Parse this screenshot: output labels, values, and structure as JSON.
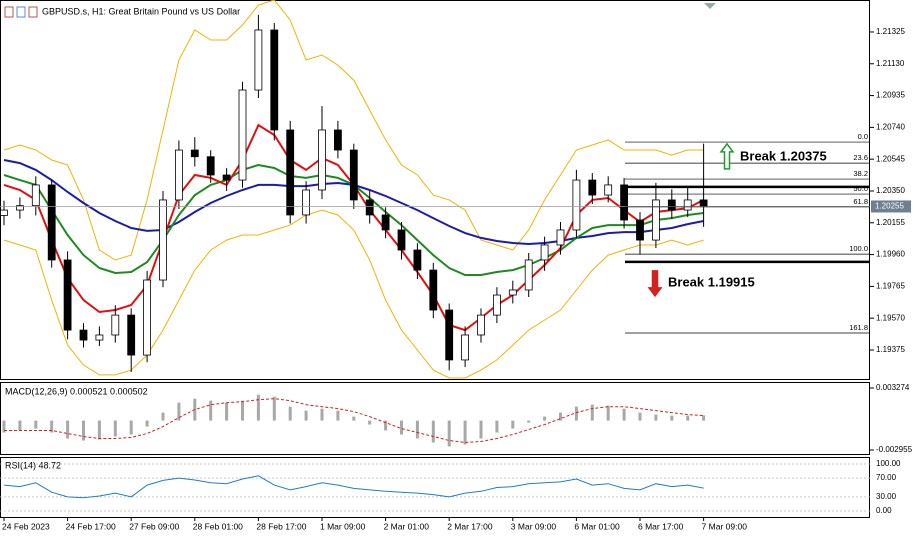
{
  "chart_data": [
    {
      "type": "candlestick",
      "title": "GBPUSD.s, H1:  Great Britain Pound vs US Dollar",
      "categories": [
        "24 Feb 2023",
        null,
        null,
        null,
        "24 Feb 17:00",
        null,
        null,
        null,
        "27 Feb 09:00",
        null,
        null,
        null,
        "28 Feb 01:00",
        null,
        null,
        null,
        "28 Feb 17:00",
        null,
        null,
        null,
        "1 Mar 09:00",
        null,
        null,
        null,
        "2 Mar 01:00",
        null,
        null,
        null,
        "2 Mar 17:00",
        null,
        null,
        null,
        "3 Mar 09:00",
        null,
        null,
        null,
        "6 Mar 01:00",
        null,
        null,
        null,
        "6 Mar 17:00",
        null,
        null,
        null,
        "7 Mar 09:00"
      ],
      "open": [
        1.202,
        1.20233,
        1.2026,
        1.20387,
        1.19927,
        1.19497,
        1.19436,
        1.19467,
        1.19589,
        1.19344,
        1.19804,
        1.20295,
        1.20601,
        1.2056,
        1.20448,
        1.20417,
        1.20969,
        1.21337,
        1.20724,
        1.20203,
        1.20356,
        1.20724,
        1.20601,
        1.20295,
        1.20203,
        1.20111,
        1.19988,
        1.19865,
        1.1962,
        1.19314,
        1.19467,
        1.19589,
        1.19712,
        1.19743,
        1.19927,
        1.20019,
        1.20111,
        1.20417,
        1.20325,
        1.20387,
        1.20172,
        1.20049,
        1.20295,
        1.20233,
        1.20295
      ],
      "high": [
        1.2029,
        1.2031,
        1.2044,
        1.2042,
        1.1998,
        1.1954,
        1.1952,
        1.1965,
        1.1963,
        1.1986,
        1.2035,
        1.2066,
        1.2068,
        1.206,
        1.2049,
        1.2102,
        1.2143,
        1.2138,
        1.2078,
        1.2041,
        1.2087,
        1.2078,
        1.2064,
        1.2035,
        1.2025,
        1.2016,
        1.2003,
        1.1991,
        1.1966,
        1.1952,
        1.1963,
        1.1976,
        1.198,
        1.1997,
        1.2007,
        1.2016,
        1.2048,
        1.2046,
        1.2044,
        1.2043,
        1.2022,
        1.204,
        1.2036,
        1.2038,
        1.2064
      ],
      "low": [
        1.2014,
        1.2018,
        1.202,
        1.1988,
        1.1944,
        1.1939,
        1.194,
        1.1942,
        1.1924,
        1.193,
        1.1976,
        1.2024,
        1.205,
        1.204,
        1.2035,
        1.2037,
        1.2092,
        1.2066,
        1.2015,
        1.2015,
        1.203,
        1.2055,
        1.2024,
        1.2015,
        1.2006,
        1.1993,
        1.1981,
        1.1957,
        1.1925,
        1.1927,
        1.1942,
        1.1954,
        1.1966,
        1.197,
        1.1986,
        1.1996,
        1.2006,
        1.2027,
        1.2028,
        1.2012,
        1.1996,
        1.2,
        1.2018,
        1.2019,
        1.2013
      ],
      "close": [
        1.20233,
        1.2026,
        1.20387,
        1.19927,
        1.19497,
        1.19436,
        1.19467,
        1.19589,
        1.19344,
        1.19804,
        1.20295,
        1.20601,
        1.2056,
        1.20448,
        1.20417,
        1.20969,
        1.21337,
        1.20724,
        1.20203,
        1.20356,
        1.20724,
        1.20601,
        1.20295,
        1.20203,
        1.20111,
        1.19988,
        1.19865,
        1.1962,
        1.19314,
        1.19467,
        1.19589,
        1.19712,
        1.19743,
        1.19927,
        1.20019,
        1.20111,
        1.20417,
        1.20325,
        1.20387,
        1.20172,
        1.20049,
        1.20295,
        1.20233,
        1.20295,
        1.20255
      ],
      "overlays": [
        {
          "color": "#f0b400",
          "values": [
            1.20601,
            1.20632,
            1.20601,
            1.2054,
            1.20509,
            1.20295,
            1.19988,
            1.19927,
            1.19957,
            1.20295,
            1.20724,
            1.21153,
            1.21337,
            1.21276,
            1.21276,
            1.21368,
            1.2149,
            1.21521,
            1.21398,
            1.21153,
            1.21184,
            1.21122,
            1.2103,
            1.20846,
            1.20663,
            1.20509,
            1.20448,
            1.20325,
            1.20295,
            1.20233,
            1.20049,
            1.20019,
            1.19988,
            1.20111,
            1.20295,
            1.20448,
            1.20601,
            1.20632,
            1.20663,
            1.20601,
            1.20601,
            1.20601,
            1.2057,
            1.20601,
            1.20601
          ]
        },
        {
          "color": "#f0b400",
          "values": [
            1.20049,
            1.20019,
            1.19988,
            1.19681,
            1.19405,
            1.19283,
            1.19222,
            1.19222,
            1.19252,
            1.19344,
            1.19497,
            1.19681,
            1.19865,
            1.19988,
            1.20049,
            1.2008,
            1.2008,
            1.20111,
            1.20141,
            1.20203,
            1.20233,
            1.20203,
            1.20111,
            1.19927,
            1.19681,
            1.19497,
            1.19375,
            1.19252,
            1.19203,
            1.19203,
            1.19252,
            1.19314,
            1.19405,
            1.19497,
            1.19559,
            1.1962,
            1.19743,
            1.19865,
            1.19957,
            1.19988,
            1.20019,
            1.20019,
            1.20049,
            1.20019,
            1.20049
          ]
        },
        {
          "color": "#1c1ca8",
          "values": [
            1.2054,
            1.20521,
            1.20479,
            1.20417,
            1.20344,
            1.20276,
            1.20215,
            1.20166,
            1.20123,
            1.20105,
            1.20111,
            1.2016,
            1.20221,
            1.20276,
            1.20319,
            1.20356,
            1.20387,
            1.20387,
            1.2038,
            1.2038,
            1.20393,
            1.20399,
            1.20387,
            1.20356,
            1.20319,
            1.20276,
            1.20233,
            1.20184,
            1.20135,
            1.20092,
            1.20062,
            1.20043,
            1.20031,
            1.20025,
            1.20031,
            1.20043,
            1.20062,
            1.20074,
            1.20092,
            1.20098,
            1.20098,
            1.20111,
            1.20123,
            1.20147,
            1.20166
          ]
        },
        {
          "color": "#1f8a1f",
          "values": [
            1.20448,
            1.20417,
            1.20387,
            1.20233,
            1.2008,
            1.19957,
            1.19878,
            1.19847,
            1.19853,
            1.19914,
            1.20049,
            1.20203,
            1.20325,
            1.20387,
            1.20417,
            1.20479,
            1.20509,
            1.20491,
            1.20442,
            1.2043,
            1.20448,
            1.2043,
            1.20387,
            1.20307,
            1.20221,
            1.20141,
            1.20049,
            1.19957,
            1.19878,
            1.19835,
            1.19835,
            1.19853,
            1.19865,
            1.19896,
            1.19939,
            1.19988,
            1.20062,
            1.20123,
            1.20141,
            1.20141,
            1.20141,
            1.20172,
            1.20184,
            1.20203,
            1.20215
          ]
        },
        {
          "color": "#e01010",
          "values": [
            1.20387,
            1.20356,
            1.20295,
            1.20049,
            1.19816,
            1.19681,
            1.19608,
            1.1962,
            1.19651,
            1.19773,
            1.20049,
            1.20325,
            1.20448,
            1.2043,
            1.20387,
            1.2054,
            1.20754,
            1.20693,
            1.2054,
            1.20479,
            1.20552,
            1.20509,
            1.20387,
            1.20233,
            1.20111,
            1.19988,
            1.19853,
            1.19712,
            1.19528,
            1.19497,
            1.19571,
            1.19651,
            1.19712,
            1.19804,
            1.19896,
            1.2,
            1.20203,
            1.20295,
            1.20307,
            1.20233,
            1.2016,
            1.20221,
            1.20233,
            1.20245,
            1.20295
          ]
        }
      ],
      "ylim": [
        1.19191,
        1.21521
      ],
      "yticks": [
        1.21325,
        {
          "value": 1.2113,
          "label": "1.21130"
        },
        1.20935,
        {
          "value": 1.2074,
          "label": "1.20740"
        },
        1.20545,
        {
          "value": 1.2035,
          "label": "1.20350"
        },
        1.20155,
        {
          "value": 1.1996,
          "label": "1.19960"
        },
        1.19765,
        {
          "value": 1.1957,
          "label": "1.19570"
        },
        1.19375
      ],
      "current_price": 1.20255,
      "fibonacci": {
        "levels": [
          {
            "value": 0,
            "label": "0.0"
          },
          23.6,
          38.2,
          {
            "value": 50,
            "label": "50.0"
          },
          61.8,
          {
            "value": 100,
            "label": "100.0"
          },
          161.8
        ],
        "prices": [
          1.2065,
          1.20521,
          1.20423,
          1.20331,
          1.20252,
          1.19963,
          1.19479
        ]
      },
      "annotations": [
        {
          "text": "Break 1.20375",
          "value": 1.20375,
          "color": "#1f9a2f"
        },
        {
          "text": "Break 1.19915",
          "value": 1.19915,
          "color": "#d42020"
        }
      ]
    },
    {
      "type": "macd",
      "title": "MACD(12,26,9) 0.000521 0.000502",
      "histogram": [
        -0.0012,
        -0.001,
        -0.0008,
        -0.0012,
        -0.0018,
        -0.002,
        -0.0019,
        -0.0016,
        -0.0014,
        -0.0006,
        0.0008,
        0.0018,
        0.0022,
        0.002,
        0.0018,
        0.002,
        0.0026,
        0.0024,
        0.0014,
        0.001,
        0.0012,
        0.001,
        0.0004,
        -0.0004,
        -0.001,
        -0.0014,
        -0.0018,
        -0.0022,
        -0.0026,
        -0.0024,
        -0.0018,
        -0.0012,
        -0.0008,
        -0.0002,
        0.0004,
        0.0008,
        0.0014,
        0.0016,
        0.0015,
        0.0012,
        0.0008,
        0.0006,
        0.0005,
        0.0005,
        0.000521
      ],
      "signal": [
        -0.001,
        -0.001,
        -0.001,
        -0.001,
        -0.0013,
        -0.0016,
        -0.0018,
        -0.0018,
        -0.0017,
        -0.0013,
        -0.0006,
        0.0003,
        0.0011,
        0.0016,
        0.0018,
        0.0019,
        0.0021,
        0.0022,
        0.002,
        0.0016,
        0.0014,
        0.0012,
        0.0009,
        0.0004,
        -0.0002,
        -0.0008,
        -0.0012,
        -0.0016,
        -0.002,
        -0.0022,
        -0.0021,
        -0.0018,
        -0.0014,
        -0.0009,
        -0.0004,
        0.0002,
        0.0008,
        0.0012,
        0.0014,
        0.0014,
        0.0012,
        0.001,
        0.0008,
        0.0006,
        0.000502
      ],
      "histogram_color": "#a8a8a8",
      "signal_color": "#d42020",
      "ylim": [
        -0.002955,
        0.003274
      ],
      "yticks": [
        0.003274,
        -0.002955
      ]
    },
    {
      "type": "line",
      "title": "RSI(14) 48.72",
      "values": [
        55,
        52,
        60,
        40,
        30,
        28,
        32,
        38,
        30,
        55,
        65,
        70,
        66,
        60,
        58,
        68,
        75,
        55,
        45,
        52,
        60,
        55,
        48,
        45,
        42,
        40,
        38,
        35,
        30,
        38,
        42,
        50,
        52,
        58,
        60,
        62,
        68,
        55,
        58,
        48,
        45,
        58,
        52,
        55,
        48.72
      ],
      "color": "#1e7fc8",
      "ylim": [
        0,
        100
      ],
      "yticks": [
        {
          "value": 100,
          "label": "100.00"
        },
        {
          "value": 70,
          "label": "70.00"
        },
        {
          "value": 30,
          "label": "30.00"
        },
        {
          "value": 0,
          "label": "0.00"
        }
      ]
    }
  ]
}
